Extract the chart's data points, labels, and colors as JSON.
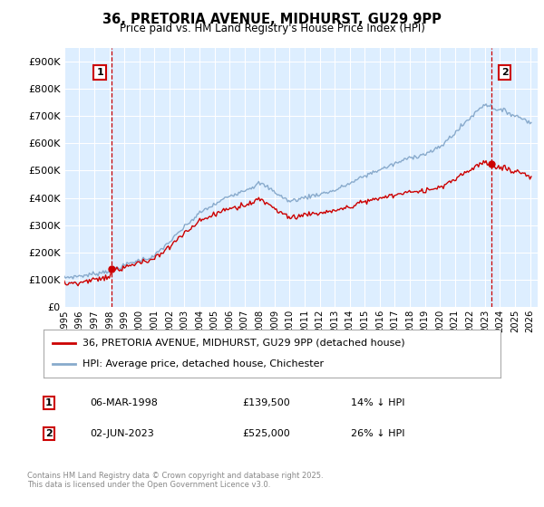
{
  "title": "36, PRETORIA AVENUE, MIDHURST, GU29 9PP",
  "subtitle": "Price paid vs. HM Land Registry's House Price Index (HPI)",
  "legend_line1": "36, PRETORIA AVENUE, MIDHURST, GU29 9PP (detached house)",
  "legend_line2": "HPI: Average price, detached house, Chichester",
  "annotation1_label": "1",
  "annotation1_date": "06-MAR-1998",
  "annotation1_price": 139500,
  "annotation1_hpi": "14% ↓ HPI",
  "annotation2_label": "2",
  "annotation2_date": "02-JUN-2023",
  "annotation2_price": 525000,
  "annotation2_hpi": "26% ↓ HPI",
  "footnote": "Contains HM Land Registry data © Crown copyright and database right 2025.\nThis data is licensed under the Open Government Licence v3.0.",
  "red_color": "#cc0000",
  "blue_color": "#88aacc",
  "grid_color": "#cce0ee",
  "background_color": "#ffffff",
  "plot_bg_color": "#ddeeff",
  "ylim": [
    0,
    950000
  ],
  "yticks": [
    0,
    100000,
    200000,
    300000,
    400000,
    500000,
    600000,
    700000,
    800000,
    900000
  ],
  "ytick_labels": [
    "£0",
    "£100K",
    "£200K",
    "£300K",
    "£400K",
    "£500K",
    "£600K",
    "£700K",
    "£800K",
    "£900K"
  ],
  "sale1_x": 1998.17,
  "sale1_y": 139500,
  "sale2_x": 2023.42,
  "sale2_y": 525000,
  "xmin": 1995.0,
  "xmax": 2026.5
}
